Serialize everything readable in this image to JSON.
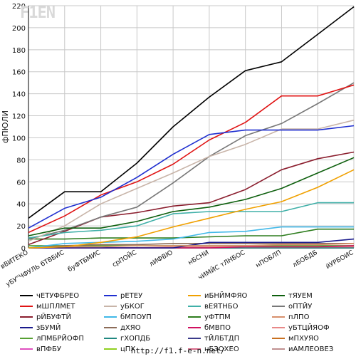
{
  "logo": {
    "text": "F1EN"
  },
  "footer": {
    "url": "http://f1.f-e-n.net/"
  },
  "chart_data": {
    "type": "line",
    "title": "",
    "xlabel": "",
    "ylabel": "фПЮЛИ",
    "ylim": [
      0,
      220
    ],
    "yticks": [
      0,
      20,
      40,
      60,
      80,
      100,
      120,
      140,
      160,
      180,
      200,
      220
    ],
    "grid": true,
    "legend_position": "bottom",
    "categories": [
      "вВИТЕКО",
      "уБУ\"ЧФУЛЬ бТВБИС",
      "буФТБМИС",
      "срПОЙС",
      "лИФВЮ",
      "нБСНИ",
      "чИМЙС тЛНБОС",
      "нПОБЛП",
      "лБОБДБ",
      "йУРБОИС"
    ],
    "series": [
      {
        "name": "чЕТУФБРЕО",
        "color": "#000000",
        "values": [
          27,
          51,
          51,
          77,
          110,
          137,
          161,
          169,
          194,
          219
        ]
      },
      {
        "name": "рЕТЕУ",
        "color": "#1f2fd0",
        "values": [
          18,
          36,
          46,
          64,
          85,
          103,
          107,
          107,
          107,
          111
        ]
      },
      {
        "name": "иБНЙМФЯО",
        "color": "#f0a000",
        "values": [
          0,
          1,
          5,
          10,
          19,
          27,
          35,
          42,
          55,
          71
        ]
      },
      {
        "name": "тЯУЕМ",
        "color": "#0d5f0d",
        "values": [
          11,
          18,
          18,
          24,
          33,
          37,
          44,
          54,
          68,
          82
        ]
      },
      {
        "name": "мШПЛМЕТ",
        "color": "#e01414",
        "values": [
          14,
          29,
          48,
          60,
          76,
          98,
          114,
          138,
          138,
          148
        ]
      },
      {
        "name": "уБКОГ",
        "color": "#c8b4a8",
        "values": [
          6,
          20,
          40,
          54,
          68,
          83,
          94,
          108,
          108,
          116
        ]
      },
      {
        "name": "вЕЯТНБО",
        "color": "#40b0a8",
        "values": [
          9,
          14,
          16,
          20,
          31,
          33,
          33,
          33,
          41,
          41
        ]
      },
      {
        "name": "оПТЙУ",
        "color": "#787878",
        "values": [
          8,
          16,
          28,
          37,
          59,
          83,
          102,
          113,
          131,
          150
        ]
      },
      {
        "name": "рЙБУФТЙ",
        "color": "#8b1e2e",
        "values": [
          3,
          15,
          28,
          32,
          38,
          41,
          53,
          71,
          81,
          87
        ]
      },
      {
        "name": "бМПОУП",
        "color": "#40b8e8",
        "values": [
          0,
          4,
          5,
          6,
          8,
          14,
          15,
          19,
          19,
          19
        ]
      },
      {
        "name": "уФТПМ",
        "color": "#2e7d1e",
        "values": [
          8,
          8,
          9,
          9,
          9,
          10,
          11,
          11,
          17,
          17
        ]
      },
      {
        "name": "пЛПО",
        "color": "#d8906c",
        "values": [
          0,
          1,
          1,
          2,
          2,
          2,
          2,
          3,
          3,
          4
        ]
      },
      {
        "name": "зБУМЙ",
        "color": "#1a1a8c",
        "values": [
          0,
          0,
          0,
          0,
          0,
          5,
          5,
          5,
          5,
          8
        ]
      },
      {
        "name": "дХЯО",
        "color": "#8c6c58",
        "values": [
          0,
          2,
          3,
          3,
          4,
          4,
          4,
          4,
          4,
          4
        ]
      },
      {
        "name": "бМВПО",
        "color": "#d01060",
        "values": [
          0,
          0,
          0,
          0,
          0,
          0,
          1,
          1,
          1,
          2
        ]
      },
      {
        "name": "уБТЦЙЯОФ",
        "color": "#e88888",
        "values": [
          0,
          0,
          0,
          0,
          1,
          1,
          1,
          1,
          1,
          1
        ]
      },
      {
        "name": "лПМБРЙОФП",
        "color": "#56a032",
        "values": [
          2,
          2,
          2,
          2,
          2,
          2,
          2,
          2,
          2,
          2
        ]
      },
      {
        "name": "гХОПДБ",
        "color": "#208880",
        "values": [
          0,
          0,
          0,
          0,
          0,
          0,
          0,
          0,
          0,
          0
        ]
      },
      {
        "name": "тЙЛБТДП",
        "color": "#3a3a8a",
        "values": [
          0,
          0,
          0,
          0,
          0,
          0,
          0,
          0,
          0,
          0
        ]
      },
      {
        "name": "мПХУЯО",
        "color": "#c87020",
        "values": [
          0,
          0,
          0,
          0,
          0,
          0,
          0,
          0,
          0,
          0
        ]
      },
      {
        "name": "вПФБУ",
        "color": "#e050c0",
        "values": [
          0,
          0,
          0,
          0,
          0,
          0,
          0,
          0,
          0,
          0
        ]
      },
      {
        "name": "цПХ",
        "color": "#90d020",
        "values": [
          0,
          0,
          0,
          0,
          0,
          0,
          0,
          0,
          0,
          0
        ]
      },
      {
        "name": "нБЗОХЕО",
        "color": "#d86888",
        "values": [
          0,
          0,
          0,
          0,
          0,
          0,
          0,
          0,
          0,
          0
        ]
      },
      {
        "name": "иАМЛЕОВЕЗ",
        "color": "#c09090",
        "values": [
          0,
          0,
          0,
          0,
          0,
          0,
          0,
          0,
          0,
          0
        ]
      }
    ],
    "legend_order": [
      "чЕТУФБРЕО",
      "рЕТЕУ",
      "иБНЙМФЯО",
      "тЯУЕМ",
      "мШПЛМЕТ",
      "уБКОГ",
      "вЕЯТНБО",
      "оПТЙУ",
      "рЙБУФТЙ",
      "бМПОУП",
      "уФТПМ",
      "пЛПО",
      "зБУМЙ",
      "дХЯО",
      "бМВПО",
      "уБТЦЙЯОФ",
      "лПМБРЙОФП",
      "гХОПДБ",
      "тЙЛБТДП",
      "мПХУЯО",
      "вПФБУ",
      "цПХ",
      "нБЗОХЕО",
      "иАМЛЕОВЕЗ"
    ]
  }
}
